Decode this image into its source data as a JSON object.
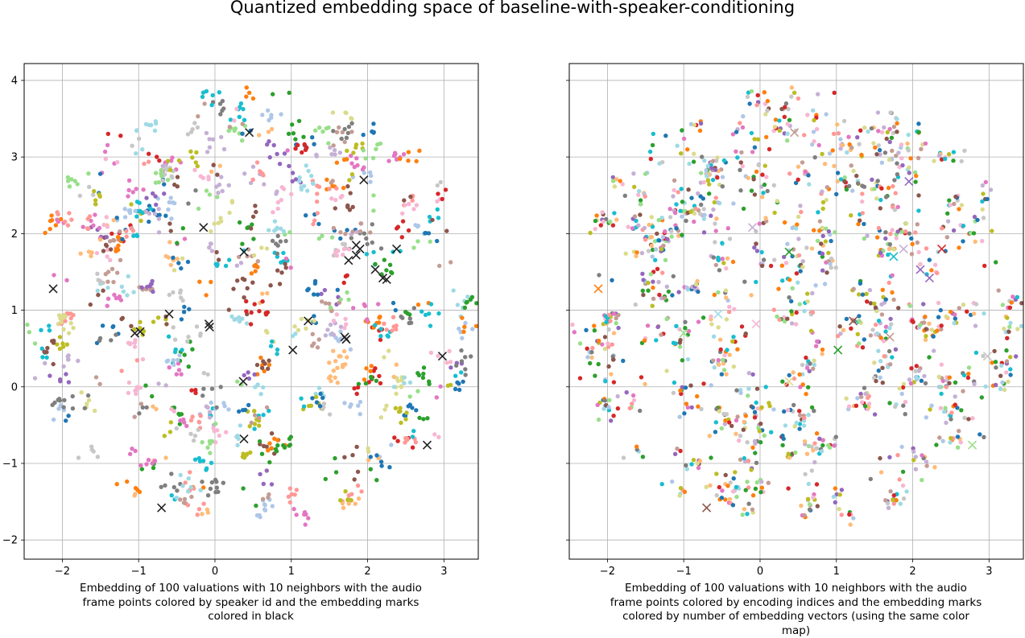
{
  "title": "Quantized embedding space of baseline-with-speaker-conditioning",
  "chart_data": [
    {
      "type": "scatter",
      "xlabel": "Embedding of 100 valuations with 10 neighbors with the audio frame points colored by speaker id and the embedding marks colored in black",
      "xlim": [
        -2.5,
        3.45
      ],
      "ylim": [
        -2.25,
        4.22
      ],
      "xticks": [
        "−2",
        "−1",
        "0",
        "1",
        "2",
        "3"
      ],
      "yticks": [
        "−2",
        "−1",
        "0",
        "1",
        "2",
        "3",
        "4"
      ],
      "grid": true,
      "points_color_rule": "speaker id",
      "marks_color": "#222222",
      "embedding_marks": [
        [
          -2.12,
          1.28
        ],
        [
          -1.05,
          0.7
        ],
        [
          -0.98,
          0.72
        ],
        [
          -0.6,
          0.95
        ],
        [
          -0.15,
          2.08
        ],
        [
          -0.08,
          0.82
        ],
        [
          -0.07,
          0.78
        ],
        [
          0.38,
          1.76
        ],
        [
          0.45,
          3.32
        ],
        [
          0.37,
          0.07
        ],
        [
          0.38,
          -0.68
        ],
        [
          1.02,
          0.48
        ],
        [
          1.22,
          0.86
        ],
        [
          1.7,
          0.65
        ],
        [
          1.72,
          0.62
        ],
        [
          1.75,
          1.65
        ],
        [
          1.85,
          1.85
        ],
        [
          1.85,
          1.72
        ],
        [
          1.9,
          1.8
        ],
        [
          1.95,
          2.7
        ],
        [
          2.1,
          1.53
        ],
        [
          2.2,
          1.42
        ],
        [
          2.25,
          1.4
        ],
        [
          2.38,
          1.8
        ],
        [
          2.78,
          -0.76
        ],
        [
          2.98,
          0.4
        ],
        [
          -0.7,
          -1.58
        ]
      ]
    },
    {
      "type": "scatter",
      "xlabel": "Embedding of 100 valuations with 10 neighbors with the audio frame points colored by encoding indices and the embedding marks colored by number of embedding vectors (using the same color map)",
      "xlim": [
        -2.5,
        3.45
      ],
      "ylim": [
        -2.25,
        4.22
      ],
      "xticks": [
        "−2",
        "−1",
        "0",
        "1",
        "2",
        "3"
      ],
      "yticks": [],
      "grid": true,
      "points_color_rule": "encoding indices",
      "embedding_marks": [
        [
          -2.12,
          1.28,
          "#ff7f0e"
        ],
        [
          -1.0,
          0.7,
          "#98df8a"
        ],
        [
          -0.55,
          0.95,
          "#9edae5"
        ],
        [
          -0.1,
          2.08,
          "#c5b0d5"
        ],
        [
          -0.05,
          0.82,
          "#f7b6d2"
        ],
        [
          0.38,
          1.76,
          "#2ca02c"
        ],
        [
          0.45,
          3.32,
          "#c49c94"
        ],
        [
          0.38,
          0.07,
          "#dbdb8d"
        ],
        [
          1.02,
          0.48,
          "#2ca02c"
        ],
        [
          1.22,
          0.86,
          "#8c564b"
        ],
        [
          1.7,
          0.65,
          "#c49c94"
        ],
        [
          1.75,
          1.7,
          "#17becf"
        ],
        [
          1.88,
          1.8,
          "#c5b0d5"
        ],
        [
          1.95,
          2.68,
          "#9467bd"
        ],
        [
          2.1,
          1.53,
          "#9467bd"
        ],
        [
          2.22,
          1.42,
          "#9467bd"
        ],
        [
          2.38,
          1.8,
          "#d62728"
        ],
        [
          2.78,
          -0.76,
          "#98df8a"
        ],
        [
          2.98,
          0.4,
          "#c7c7c7"
        ],
        [
          -0.7,
          -1.58,
          "#8c564b"
        ]
      ]
    }
  ],
  "palette": [
    "#1f77b4",
    "#aec7e8",
    "#ff7f0e",
    "#ffbb78",
    "#2ca02c",
    "#98df8a",
    "#d62728",
    "#ff9896",
    "#9467bd",
    "#c5b0d5",
    "#8c564b",
    "#c49c94",
    "#e377c2",
    "#f7b6d2",
    "#7f7f7f",
    "#c7c7c7",
    "#bcbd22",
    "#dbdb8d",
    "#17becf",
    "#9edae5"
  ]
}
